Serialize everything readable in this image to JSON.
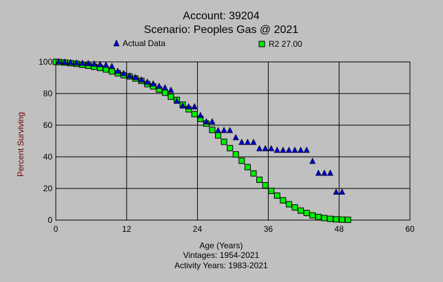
{
  "chart_data": {
    "type": "scatter",
    "title": [
      "Account: 39204",
      "Scenario: Peoples Gas @ 2021"
    ],
    "xlabel": "Age (Years)",
    "ylabel": "Percent Surviving",
    "subtitle": [
      "Vintages: 1954-2021",
      "Activity Years: 1983-2021"
    ],
    "xlim": [
      0,
      60
    ],
    "ylim": [
      0,
      100
    ],
    "xticks": [
      0,
      12,
      24,
      36,
      48,
      60
    ],
    "yticks": [
      0,
      20,
      40,
      60,
      80,
      100
    ],
    "grid": true,
    "legend_position": "top",
    "series": [
      {
        "name": "Actual Data",
        "marker": "triangle",
        "color": "#0000cc",
        "x": [
          0.5,
          1.5,
          2.5,
          3.5,
          4.5,
          5.5,
          6.5,
          7.5,
          8.5,
          9.5,
          10.5,
          11.5,
          12.5,
          13.5,
          14.5,
          15.5,
          16.5,
          17.5,
          18.5,
          19.5,
          20.5,
          21.5,
          22.5,
          23.5,
          24.5,
          25.5,
          26.5,
          27.5,
          28.5,
          29.5,
          30.5,
          31.5,
          32.5,
          33.5,
          34.5,
          35.5,
          36.5,
          37.5,
          38.5,
          39.5,
          40.5,
          41.5,
          42.5,
          43.5,
          44.5,
          45.5,
          46.5,
          47.5,
          48.5
        ],
        "y": [
          100,
          99.7,
          99.5,
          99.2,
          99,
          98.8,
          98.5,
          98.2,
          97.8,
          97,
          94,
          92.5,
          91,
          90,
          88.5,
          87,
          86,
          84.5,
          83.5,
          82,
          75,
          72,
          71.5,
          71.5,
          66,
          62,
          62,
          56.5,
          56.5,
          56.5,
          52,
          49,
          49,
          49,
          45,
          45,
          45,
          44,
          44,
          44,
          44,
          44,
          44,
          37,
          29.5,
          29.5,
          29.5,
          17.5,
          17.5
        ]
      },
      {
        "name": "R2 27.00",
        "marker": "square",
        "color": "#00ee00",
        "x": [
          0,
          0.5,
          1.5,
          2.5,
          3.5,
          4.5,
          5.5,
          6.5,
          7.5,
          8.5,
          9.5,
          10.5,
          11.5,
          12.5,
          13.5,
          14.5,
          15.5,
          16.5,
          17.5,
          18.5,
          19.5,
          20.5,
          21.5,
          22.5,
          23.5,
          24.5,
          25.5,
          26.5,
          27.5,
          28.5,
          29.5,
          30.5,
          31.5,
          32.5,
          33.5,
          34.5,
          35.5,
          36.5,
          37.5,
          38.5,
          39.5,
          40.5,
          41.5,
          42.5,
          43.5,
          44.5,
          45.5,
          46.5,
          47.5,
          48.5,
          49.5
        ],
        "y": [
          100,
          99.9,
          99.6,
          99.2,
          98.8,
          98.2,
          97.6,
          96.9,
          96.2,
          95.2,
          94,
          92.8,
          91.6,
          90.8,
          89.5,
          88,
          86,
          84.5,
          82.5,
          80.5,
          78,
          76,
          73,
          70,
          67,
          64,
          61,
          57,
          53.5,
          49.5,
          45.5,
          41.5,
          37.5,
          33.5,
          29.5,
          25.5,
          22,
          18.5,
          15.5,
          12.5,
          10,
          8,
          6,
          4.5,
          3,
          2,
          1.3,
          0.8,
          0.5,
          0.3,
          0.2
        ]
      }
    ]
  }
}
